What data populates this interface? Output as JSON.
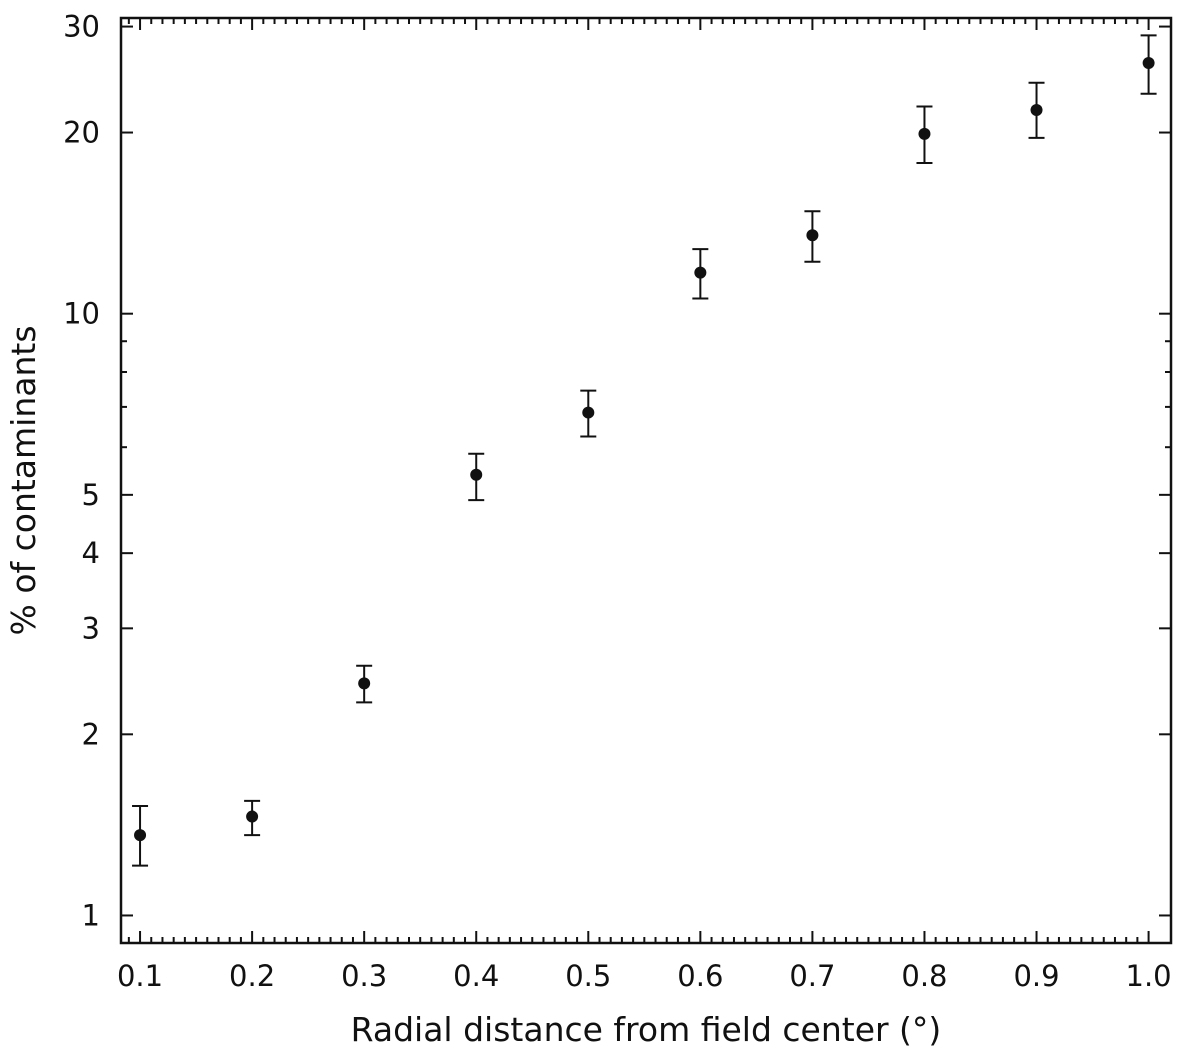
{
  "chart_data": {
    "type": "scatter",
    "title": "",
    "xlabel": "Radial distance from field center (°)",
    "ylabel": "% of contaminants",
    "x_tick_labels": [
      "0.1",
      "0.2",
      "0.3",
      "0.4",
      "0.5",
      "0.6",
      "0.7",
      "0.8",
      "0.9",
      "1.0"
    ],
    "y_tick_labels": [
      "1",
      "2",
      "3",
      "4",
      "5",
      "10",
      "20",
      "30"
    ],
    "xlim": [
      0.083,
      1.02
    ],
    "ylim": [
      0.9,
      31
    ],
    "yscale": "log",
    "grid": false,
    "legend": "none",
    "series": [
      {
        "points": [
          {
            "x": 0.1,
            "y": 1.36,
            "ylow": 1.21,
            "yhigh": 1.52
          },
          {
            "x": 0.2,
            "y": 1.46,
            "ylow": 1.36,
            "yhigh": 1.55
          },
          {
            "x": 0.3,
            "y": 2.43,
            "ylow": 2.26,
            "yhigh": 2.6
          },
          {
            "x": 0.4,
            "y": 5.4,
            "ylow": 4.9,
            "yhigh": 5.85
          },
          {
            "x": 0.5,
            "y": 6.85,
            "ylow": 6.25,
            "yhigh": 7.45
          },
          {
            "x": 0.6,
            "y": 11.7,
            "ylow": 10.6,
            "yhigh": 12.8
          },
          {
            "x": 0.7,
            "y": 13.5,
            "ylow": 12.2,
            "yhigh": 14.8
          },
          {
            "x": 0.8,
            "y": 19.9,
            "ylow": 17.8,
            "yhigh": 22.1
          },
          {
            "x": 0.9,
            "y": 21.8,
            "ylow": 19.6,
            "yhigh": 24.2
          },
          {
            "x": 1.0,
            "y": 26.1,
            "ylow": 23.2,
            "yhigh": 29.0
          }
        ]
      }
    ],
    "marker_color": "#111111"
  }
}
